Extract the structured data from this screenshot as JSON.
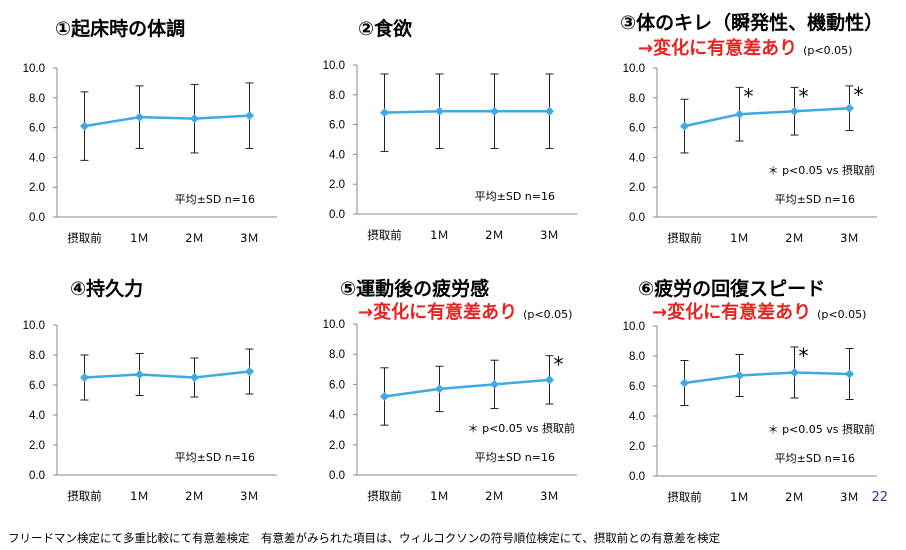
{
  "page_number": "22",
  "footer": "フリードマン検定にて多重比較にて有意差検定　有意差がみられた項目は、ウィルコクソンの符号順位検定にて、摂取前との有意差を検定",
  "colors": {
    "line": "#3fa9e4",
    "significant": "#e8231f"
  },
  "chart_data": [
    {
      "type": "line",
      "title": "①起床時の体調",
      "categories": [
        "摂取前",
        "1Ｍ",
        "2Ｍ",
        "3Ｍ"
      ],
      "values": [
        6.1,
        6.7,
        6.6,
        6.8
      ],
      "sd": [
        2.3,
        2.1,
        2.3,
        2.2
      ],
      "yticks": [
        "0.0",
        "2.0",
        "4.0",
        "6.0",
        "8.0",
        "10.0"
      ],
      "ylim": [
        0,
        10
      ],
      "stat_label": "平均±SD  n=16",
      "significant": [
        false,
        false,
        false,
        false
      ]
    },
    {
      "type": "line",
      "title": "②食欲",
      "categories": [
        "摂取前",
        "1Ｍ",
        "2Ｍ",
        "3Ｍ"
      ],
      "values": [
        6.8,
        6.9,
        6.9,
        6.9
      ],
      "sd": [
        2.6,
        2.5,
        2.5,
        2.5
      ],
      "yticks": [
        "0.0",
        "2.0",
        "4.0",
        "6.0",
        "8.0",
        "10.0"
      ],
      "ylim": [
        0,
        10
      ],
      "stat_label": "平均±SD  n=16",
      "significant": [
        false,
        false,
        false,
        false
      ]
    },
    {
      "type": "line",
      "title": "③体のキレ（瞬発性、機動性）",
      "subtitle": "→変化に有意差あり",
      "pvalue": "(p<0.05)",
      "categories": [
        "摂取前",
        "1Ｍ",
        "2Ｍ",
        "3Ｍ"
      ],
      "values": [
        6.1,
        6.9,
        7.1,
        7.3
      ],
      "sd": [
        1.8,
        1.8,
        1.6,
        1.5
      ],
      "yticks": [
        "0.0",
        "2.0",
        "4.0",
        "6.0",
        "8.0",
        "10.0"
      ],
      "ylim": [
        0,
        10
      ],
      "sig_note": "＊ p<0.05  vs  摂取前",
      "stat_label": "平均±SD  n=16",
      "significant": [
        false,
        true,
        true,
        true
      ]
    },
    {
      "type": "line",
      "title": "④持久力",
      "categories": [
        "摂取前",
        "1Ｍ",
        "2Ｍ",
        "3Ｍ"
      ],
      "values": [
        6.5,
        6.7,
        6.5,
        6.9
      ],
      "sd": [
        1.5,
        1.4,
        1.3,
        1.5
      ],
      "yticks": [
        "0.0",
        "2.0",
        "4.0",
        "6.0",
        "8.0",
        "10.0"
      ],
      "ylim": [
        0,
        10
      ],
      "stat_label": "平均±SD  n=16",
      "significant": [
        false,
        false,
        false,
        false
      ]
    },
    {
      "type": "line",
      "title": "⑤運動後の疲労感",
      "subtitle": "→変化に有意差あり",
      "pvalue": "(p<0.05)",
      "categories": [
        "摂取前",
        "1Ｍ",
        "2Ｍ",
        "3Ｍ"
      ],
      "values": [
        5.2,
        5.7,
        6.0,
        6.3
      ],
      "sd": [
        1.9,
        1.5,
        1.6,
        1.6
      ],
      "yticks": [
        "0.0",
        "2.0",
        "4.0",
        "6.0",
        "8.0",
        "10.0"
      ],
      "ylim": [
        0,
        10
      ],
      "sig_note": "＊ p<0.05  vs  摂取前",
      "stat_label": "平均±SD  n=16",
      "significant": [
        false,
        false,
        false,
        true
      ]
    },
    {
      "type": "line",
      "title": "⑥疲労の回復スピード",
      "subtitle": "→変化に有意差あり",
      "pvalue": "(p<0.05)",
      "categories": [
        "摂取前",
        "1Ｍ",
        "2Ｍ",
        "3Ｍ"
      ],
      "values": [
        6.2,
        6.7,
        6.9,
        6.8
      ],
      "sd": [
        1.5,
        1.4,
        1.7,
        1.7
      ],
      "yticks": [
        "0.0",
        "2.0",
        "4.0",
        "6.0",
        "8.0",
        "10.0"
      ],
      "ylim": [
        0,
        10
      ],
      "sig_note": "＊ p<0.05  vs  摂取前",
      "stat_label": "平均±SD  n=16",
      "significant": [
        false,
        false,
        true,
        false
      ]
    }
  ]
}
